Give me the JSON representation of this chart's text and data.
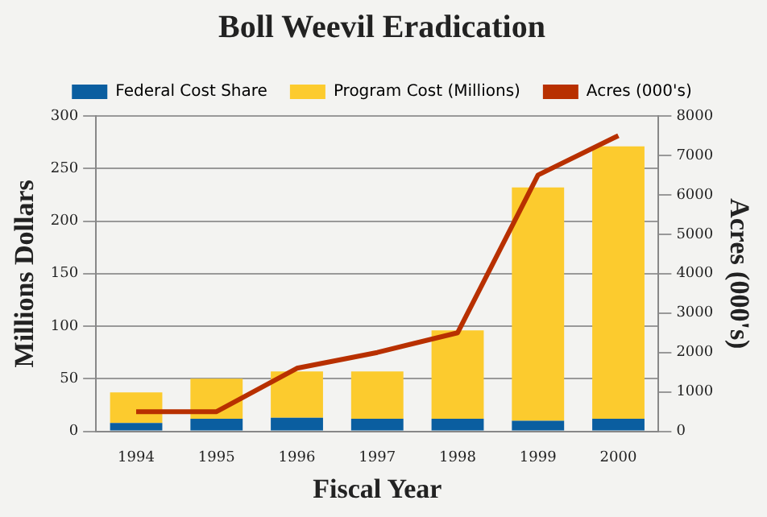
{
  "chart_data": {
    "type": "bar",
    "title": "Boll Weevil Eradication",
    "xlabel": "Fiscal Year",
    "ylabel": "Millions Dollars",
    "y2label": "Acres (000's)",
    "categories": [
      "1994",
      "1995",
      "1996",
      "1997",
      "1998",
      "1999",
      "2000"
    ],
    "stacked": true,
    "series": [
      {
        "name": "Federal Cost Share",
        "color": "#0a5ea0",
        "values": [
          8,
          12,
          13,
          12,
          12,
          10,
          12
        ]
      },
      {
        "name": "Program Cost (Millions)",
        "color": "#fccb2e",
        "values": [
          29,
          38,
          44,
          45,
          84,
          222,
          259
        ]
      },
      {
        "name": "Acres (000's)",
        "type": "line",
        "axis": "y2",
        "color": "#b83000",
        "values": [
          500,
          500,
          1600,
          2000,
          2500,
          6500,
          7500
        ]
      }
    ],
    "ylim": [
      0,
      300
    ],
    "yticks": [
      0,
      50,
      100,
      150,
      200,
      250,
      300
    ],
    "y2lim": [
      0,
      8000
    ],
    "y2ticks": [
      0,
      1000,
      2000,
      3000,
      4000,
      5000,
      6000,
      7000,
      8000
    ],
    "grid": "y",
    "legend": "top",
    "marker": "none"
  }
}
